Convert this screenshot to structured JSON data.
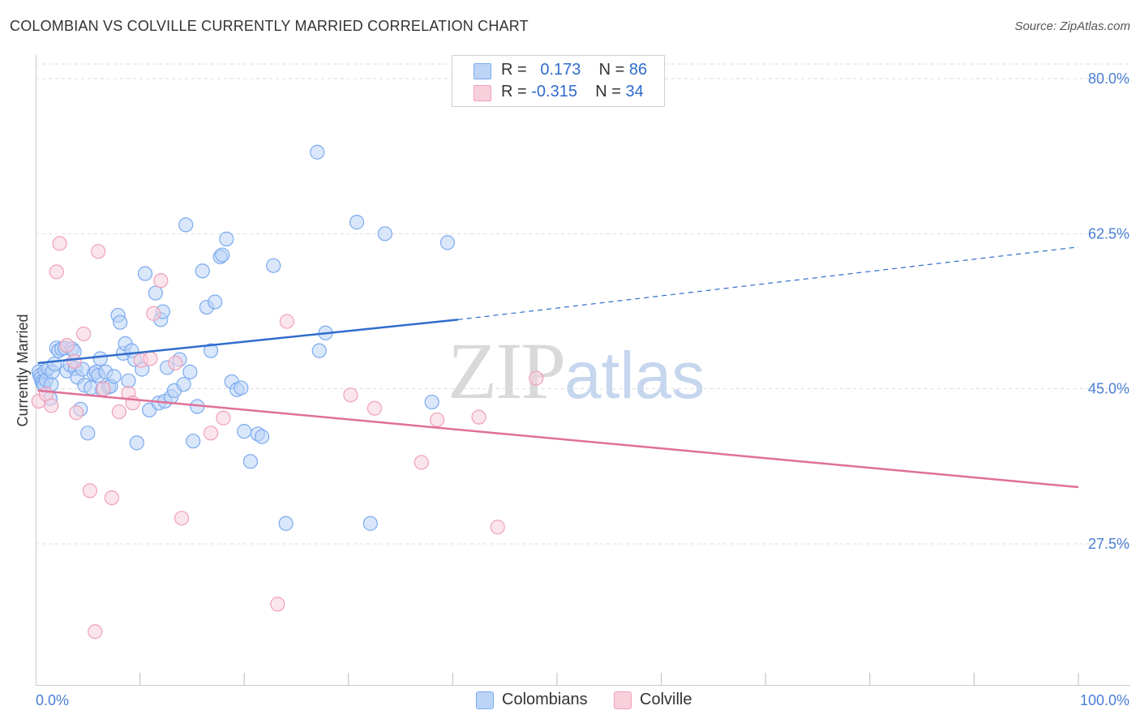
{
  "title": "COLOMBIAN VS COLVILLE CURRENTLY MARRIED CORRELATION CHART",
  "source": "Source: ZipAtlas.com",
  "watermark": {
    "zip": "ZIP",
    "atlas": "atlas"
  },
  "legend": {
    "rows": [
      {
        "r_label": "R =",
        "r_value": "0.173",
        "n_label": "N =",
        "n_value": "86"
      },
      {
        "r_label": "R =",
        "r_value": "-0.315",
        "n_label": "N =",
        "n_value": "34"
      }
    ]
  },
  "bottom_legend": {
    "colombians": "Colombians",
    "colville": "Colville"
  },
  "chart_data": {
    "type": "scatter",
    "title": "COLOMBIAN VS COLVILLE CURRENTLY MARRIED CORRELATION CHART",
    "xlabel": "",
    "ylabel": "Currently Married",
    "xlim": [
      0,
      100
    ],
    "ylim": [
      9.0,
      82.0
    ],
    "x_tick_labels": [
      {
        "value": 0,
        "label": "0.0%"
      },
      {
        "value": 100,
        "label": "100.0%"
      }
    ],
    "y_tick_labels": [
      {
        "value": 80.0,
        "label": "80.0%"
      },
      {
        "value": 62.5,
        "label": "62.5%"
      },
      {
        "value": 45.0,
        "label": "45.0%"
      },
      {
        "value": 27.5,
        "label": "27.5%"
      }
    ],
    "colors": {
      "colombians": "#7aaaf0",
      "colombians_fill": "#bcd4f6",
      "colombians_line": "#2f6ccc",
      "colville": "#f0a0b8",
      "colville_fill": "#f8d0dc",
      "colville_line": "#e07096"
    },
    "series": [
      {
        "name": "Colombians",
        "R": 0.173,
        "N": 86,
        "trend": {
          "solid": [
            [
              0.2,
              47.9
            ],
            [
              40.5,
              52.8
            ]
          ],
          "dashed": [
            [
              40.5,
              52.8
            ],
            [
              100,
              61.0
            ]
          ]
        },
        "points": [
          [
            0.3,
            46.9
          ],
          [
            0.4,
            46.5
          ],
          [
            0.5,
            46.2
          ],
          [
            0.6,
            45.8
          ],
          [
            0.7,
            45.6
          ],
          [
            0.8,
            45.4
          ],
          [
            0.9,
            47.0
          ],
          [
            1.0,
            46.0
          ],
          [
            1.2,
            47.3
          ],
          [
            1.4,
            43.9
          ],
          [
            1.5,
            45.5
          ],
          [
            1.6,
            46.9
          ],
          [
            1.8,
            47.8
          ],
          [
            2.0,
            49.6
          ],
          [
            2.2,
            49.3
          ],
          [
            2.5,
            49.5
          ],
          [
            2.8,
            49.6
          ],
          [
            3.0,
            47.0
          ],
          [
            3.3,
            47.7
          ],
          [
            3.5,
            49.5
          ],
          [
            3.7,
            49.2
          ],
          [
            3.8,
            47.3
          ],
          [
            4.0,
            46.3
          ],
          [
            4.3,
            42.7
          ],
          [
            4.5,
            47.2
          ],
          [
            4.7,
            45.4
          ],
          [
            5.0,
            40.0
          ],
          [
            5.3,
            45.1
          ],
          [
            5.6,
            46.7
          ],
          [
            5.8,
            46.9
          ],
          [
            6.0,
            46.5
          ],
          [
            6.2,
            48.4
          ],
          [
            6.4,
            44.9
          ],
          [
            6.7,
            46.9
          ],
          [
            7.0,
            45.2
          ],
          [
            7.2,
            45.3
          ],
          [
            7.5,
            46.4
          ],
          [
            7.9,
            53.3
          ],
          [
            8.1,
            52.5
          ],
          [
            8.4,
            49.0
          ],
          [
            8.6,
            50.1
          ],
          [
            8.9,
            45.9
          ],
          [
            9.2,
            49.3
          ],
          [
            9.5,
            48.3
          ],
          [
            9.7,
            38.9
          ],
          [
            10.2,
            47.2
          ],
          [
            10.5,
            58.0
          ],
          [
            10.9,
            42.6
          ],
          [
            11.5,
            55.8
          ],
          [
            11.8,
            43.4
          ],
          [
            12.0,
            52.8
          ],
          [
            12.2,
            53.7
          ],
          [
            12.4,
            43.6
          ],
          [
            12.6,
            47.4
          ],
          [
            13.0,
            44.1
          ],
          [
            13.3,
            44.8
          ],
          [
            13.8,
            48.3
          ],
          [
            14.2,
            45.5
          ],
          [
            14.4,
            63.5
          ],
          [
            14.8,
            46.9
          ],
          [
            15.1,
            39.1
          ],
          [
            15.5,
            43.0
          ],
          [
            16.0,
            58.3
          ],
          [
            16.4,
            54.2
          ],
          [
            16.8,
            49.3
          ],
          [
            17.2,
            54.8
          ],
          [
            17.7,
            59.9
          ],
          [
            17.9,
            60.1
          ],
          [
            18.3,
            61.9
          ],
          [
            18.8,
            45.8
          ],
          [
            19.3,
            44.9
          ],
          [
            19.7,
            45.1
          ],
          [
            20.0,
            40.2
          ],
          [
            20.6,
            36.8
          ],
          [
            21.3,
            39.9
          ],
          [
            21.7,
            39.6
          ],
          [
            22.8,
            58.9
          ],
          [
            24.0,
            29.8
          ],
          [
            27.0,
            71.7
          ],
          [
            27.2,
            49.3
          ],
          [
            27.8,
            51.3
          ],
          [
            30.8,
            63.8
          ],
          [
            32.1,
            29.8
          ],
          [
            33.5,
            62.5
          ],
          [
            38.0,
            43.5
          ],
          [
            39.5,
            61.5
          ]
        ]
      },
      {
        "name": "Colville",
        "R": -0.315,
        "N": 34,
        "trend": {
          "solid": [
            [
              0.2,
              44.8
            ],
            [
              100,
              33.9
            ]
          ]
        },
        "points": [
          [
            0.3,
            43.6
          ],
          [
            1.0,
            44.4
          ],
          [
            1.5,
            43.1
          ],
          [
            2.0,
            58.2
          ],
          [
            2.3,
            61.4
          ],
          [
            3.0,
            49.9
          ],
          [
            3.7,
            48.1
          ],
          [
            3.9,
            42.3
          ],
          [
            4.6,
            51.2
          ],
          [
            5.2,
            33.5
          ],
          [
            5.7,
            17.6
          ],
          [
            6.0,
            60.5
          ],
          [
            6.5,
            45.0
          ],
          [
            7.3,
            32.7
          ],
          [
            8.0,
            42.4
          ],
          [
            8.9,
            44.5
          ],
          [
            9.3,
            43.4
          ],
          [
            10.1,
            48.2
          ],
          [
            11.0,
            48.4
          ],
          [
            11.3,
            53.5
          ],
          [
            12.0,
            57.2
          ],
          [
            13.4,
            47.9
          ],
          [
            14.0,
            30.4
          ],
          [
            16.8,
            40.0
          ],
          [
            18.0,
            41.7
          ],
          [
            23.2,
            20.7
          ],
          [
            24.1,
            52.6
          ],
          [
            30.2,
            44.3
          ],
          [
            32.5,
            42.8
          ],
          [
            37.0,
            36.7
          ],
          [
            38.5,
            41.5
          ],
          [
            42.5,
            41.8
          ],
          [
            44.3,
            29.4
          ],
          [
            48.0,
            46.2
          ]
        ]
      }
    ]
  }
}
